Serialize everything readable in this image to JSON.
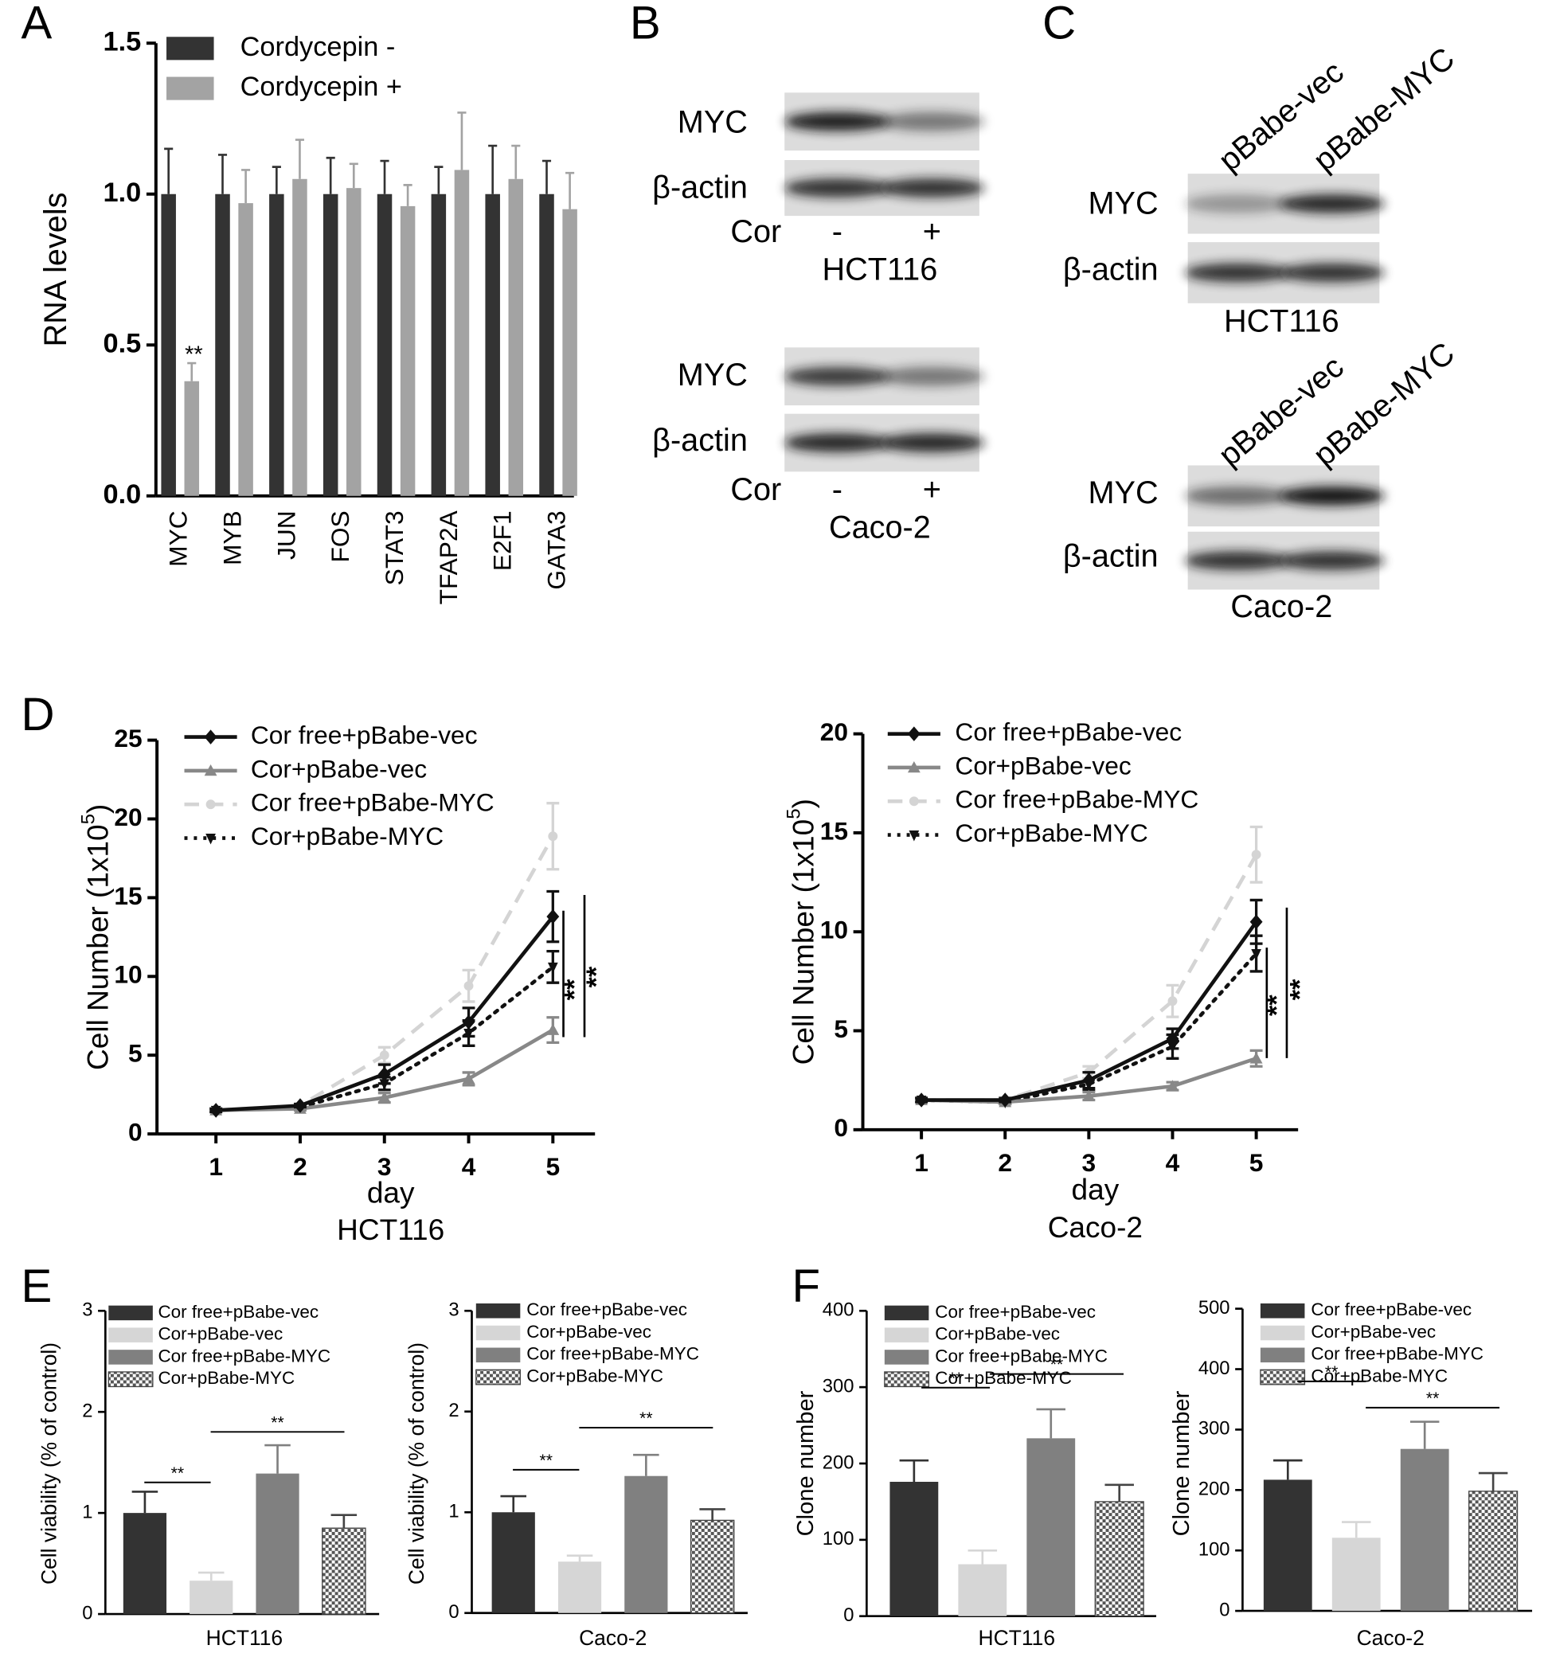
{
  "panel_labels": [
    "A",
    "B",
    "C",
    "D",
    "E",
    "F"
  ],
  "chart_data": [
    {
      "type": "bar",
      "y_label": "RNA levels",
      "categories": [
        "MYC",
        "MYB",
        "JUN",
        "FOS",
        "STAT3",
        "TFAP2A",
        "E2F1",
        "GATA3"
      ],
      "series": [
        {
          "name": "Cordycepin -",
          "color": "#333333",
          "values": [
            1.0,
            1.0,
            1.0,
            1.0,
            1.0,
            1.0,
            1.0,
            1.0
          ],
          "errors": [
            0.15,
            0.13,
            0.09,
            0.12,
            0.11,
            0.09,
            0.16,
            0.11
          ]
        },
        {
          "name": "Cordycepin +",
          "color": "#a3a3a3",
          "values": [
            0.38,
            0.97,
            1.05,
            1.02,
            0.96,
            1.08,
            1.05,
            0.95
          ],
          "errors": [
            0.06,
            0.11,
            0.13,
            0.08,
            0.07,
            0.19,
            0.11,
            0.12
          ]
        }
      ],
      "ylim": [
        0,
        1.5
      ],
      "yticks": [
        {
          "value": 0,
          "label": "0.0"
        },
        {
          "value": 0.5,
          "label": "0.5"
        },
        {
          "value": 1,
          "label": "1.0"
        },
        {
          "value": 1.5,
          "label": "1.5"
        }
      ],
      "annotations": [
        "**"
      ]
    },
    {
      "type": "line",
      "y_label": "Cell Number (1x10",
      "y_label_sup": "5",
      "y_label_end": ")",
      "x_label": "day",
      "subtitle": "HCT116",
      "x": [
        1,
        2,
        3,
        4,
        5
      ],
      "series": [
        {
          "name": "Cor free+pBabe-vec",
          "color": "#111111",
          "dash": "solid",
          "marker": "diamond",
          "values": [
            1.5,
            1.8,
            3.8,
            7.1,
            13.8
          ],
          "errors": [
            0.1,
            0.1,
            0.6,
            0.9,
            1.6
          ]
        },
        {
          "name": "Cor+pBabe-vec",
          "color": "#888888",
          "dash": "solid",
          "marker": "triangle",
          "values": [
            1.5,
            1.6,
            2.3,
            3.5,
            6.6
          ],
          "errors": [
            0.1,
            0.1,
            0.3,
            0.4,
            0.8
          ]
        },
        {
          "name": "Cor free+pBabe-MYC",
          "color": "#d4d4d4",
          "dash": "dashed",
          "marker": "circle",
          "values": [
            1.5,
            1.8,
            5.0,
            9.4,
            18.9
          ],
          "errors": [
            0.1,
            0.1,
            0.5,
            1.0,
            2.1
          ]
        },
        {
          "name": "Cor+pBabe-MYC",
          "color": "#111111",
          "dash": "dotted",
          "marker": "triangle-down",
          "values": [
            1.5,
            1.7,
            3.2,
            6.4,
            10.6
          ],
          "errors": [
            0.1,
            0.1,
            0.4,
            0.8,
            1.0
          ]
        }
      ],
      "xlim": [
        0.3,
        5.5
      ],
      "xticks": [
        1,
        2,
        3,
        4,
        5
      ],
      "ylim": [
        0,
        25
      ],
      "yticks": [
        0,
        5,
        10,
        15,
        20,
        25
      ],
      "annotations": [
        "**",
        "**"
      ]
    },
    {
      "type": "line",
      "y_label": "Cell Number (1x10",
      "y_label_sup": "5",
      "y_label_end": ")",
      "x_label": "day",
      "subtitle": "Caco-2",
      "x": [
        1,
        2,
        3,
        4,
        5
      ],
      "series": [
        {
          "name": "Cor free+pBabe-vec",
          "color": "#111111",
          "dash": "solid",
          "marker": "diamond",
          "values": [
            1.5,
            1.5,
            2.5,
            4.6,
            10.5
          ],
          "errors": [
            0.1,
            0.1,
            0.4,
            0.5,
            1.1
          ]
        },
        {
          "name": "Cor+pBabe-vec",
          "color": "#888888",
          "dash": "solid",
          "marker": "triangle",
          "values": [
            1.5,
            1.4,
            1.7,
            2.2,
            3.6
          ],
          "errors": [
            0.1,
            0.1,
            0.2,
            0.2,
            0.4
          ]
        },
        {
          "name": "Cor free+pBabe-MYC",
          "color": "#d4d4d4",
          "dash": "dashed",
          "marker": "circle",
          "values": [
            1.5,
            1.5,
            2.9,
            6.5,
            13.9
          ],
          "errors": [
            0.1,
            0.1,
            0.3,
            0.8,
            1.4
          ]
        },
        {
          "name": "Cor+pBabe-MYC",
          "color": "#111111",
          "dash": "dotted",
          "marker": "triangle-down",
          "values": [
            1.5,
            1.4,
            2.3,
            4.2,
            8.9
          ],
          "errors": [
            0.1,
            0.1,
            0.3,
            0.6,
            0.9
          ]
        }
      ],
      "xlim": [
        0.3,
        5.5
      ],
      "xticks": [
        1,
        2,
        3,
        4,
        5
      ],
      "ylim": [
        0,
        20
      ],
      "yticks": [
        0,
        5,
        10,
        15,
        20
      ],
      "annotations": [
        "**",
        "**"
      ]
    },
    {
      "type": "bar",
      "y_label": "Cell viability (% of control)",
      "categories": [
        "HCT116"
      ],
      "series": [
        {
          "name": "Cor free+pBabe-vec",
          "color": "#333333",
          "values": [
            1.0
          ],
          "errors": [
            0.21
          ]
        },
        {
          "name": "Cor+pBabe-vec",
          "color": "#d6d6d6",
          "values": [
            0.33
          ],
          "errors": [
            0.08
          ]
        },
        {
          "name": "Cor free+pBabe-MYC",
          "color": "#808080",
          "values": [
            1.39
          ],
          "errors": [
            0.28
          ]
        },
        {
          "name": "Cor+pBabe-MYC",
          "color": "#666666",
          "pattern": "checker",
          "values": [
            0.85
          ],
          "errors": [
            0.13
          ]
        }
      ],
      "ylim": [
        0,
        3
      ],
      "yticks": [
        0,
        1,
        2,
        3
      ],
      "annotations": [
        "**",
        "**"
      ]
    },
    {
      "type": "bar",
      "y_label": "Cell viability (% of control)",
      "categories": [
        "Caco-2"
      ],
      "series": [
        {
          "name": "Cor free+pBabe-vec",
          "color": "#333333",
          "values": [
            1.0
          ],
          "errors": [
            0.16
          ]
        },
        {
          "name": "Cor+pBabe-vec",
          "color": "#d6d6d6",
          "values": [
            0.51
          ],
          "errors": [
            0.06
          ]
        },
        {
          "name": "Cor free+pBabe-MYC",
          "color": "#808080",
          "values": [
            1.36
          ],
          "errors": [
            0.21
          ]
        },
        {
          "name": "Cor+pBabe-MYC",
          "color": "#666666",
          "pattern": "checker",
          "values": [
            0.92
          ],
          "errors": [
            0.11
          ]
        }
      ],
      "ylim": [
        0,
        3
      ],
      "yticks": [
        0,
        1,
        2,
        3
      ],
      "annotations": [
        "**",
        "**"
      ]
    },
    {
      "type": "bar",
      "y_label": "Clone number",
      "categories": [
        "HCT116"
      ],
      "series": [
        {
          "name": "Cor free+pBabe-vec",
          "color": "#333333",
          "values": [
            176
          ],
          "errors": [
            28
          ]
        },
        {
          "name": "Cor+pBabe-vec",
          "color": "#d6d6d6",
          "values": [
            68
          ],
          "errors": [
            18
          ]
        },
        {
          "name": "Cor free+pBabe-MYC",
          "color": "#808080",
          "values": [
            233
          ],
          "errors": [
            38
          ]
        },
        {
          "name": "Cor+pBabe-MYC",
          "color": "#666666",
          "pattern": "checker",
          "values": [
            150
          ],
          "errors": [
            22
          ]
        }
      ],
      "ylim": [
        0,
        400
      ],
      "yticks": [
        0,
        100,
        200,
        300,
        400
      ],
      "annotations": [
        "**",
        "**"
      ]
    },
    {
      "type": "bar",
      "y_label": "Clone number",
      "categories": [
        "Caco-2"
      ],
      "series": [
        {
          "name": "Cor free+pBabe-vec",
          "color": "#333333",
          "values": [
            217
          ],
          "errors": [
            32
          ]
        },
        {
          "name": "Cor+pBabe-vec",
          "color": "#d6d6d6",
          "values": [
            121
          ],
          "errors": [
            26
          ]
        },
        {
          "name": "Cor free+pBabe-MYC",
          "color": "#808080",
          "values": [
            268
          ],
          "errors": [
            45
          ]
        },
        {
          "name": "Cor+pBabe-MYC",
          "color": "#666666",
          "pattern": "checker",
          "values": [
            198
          ],
          "errors": [
            30
          ]
        }
      ],
      "ylim": [
        0,
        500
      ],
      "yticks": [
        0,
        100,
        200,
        300,
        400,
        500
      ],
      "annotations": [
        "**",
        "**"
      ]
    }
  ],
  "blots": [
    {
      "rows": [
        "MYC",
        "β-actin"
      ],
      "treatment": "Cor",
      "lanes": [
        "-",
        "+"
      ],
      "cell_line": "HCT116"
    },
    {
      "rows": [
        "MYC",
        "β-actin"
      ],
      "treatment": "Cor",
      "lanes": [
        "-",
        "+"
      ],
      "cell_line": "Caco-2"
    },
    {
      "rows": [
        "MYC",
        "β-actin"
      ],
      "lanes": [
        "pBabe-vec",
        "pBabe-MYC"
      ],
      "cell_line": "HCT116"
    },
    {
      "rows": [
        "MYC",
        "β-actin"
      ],
      "lanes": [
        "pBabe-vec",
        "pBabe-MYC"
      ],
      "cell_line": "Caco-2"
    }
  ]
}
